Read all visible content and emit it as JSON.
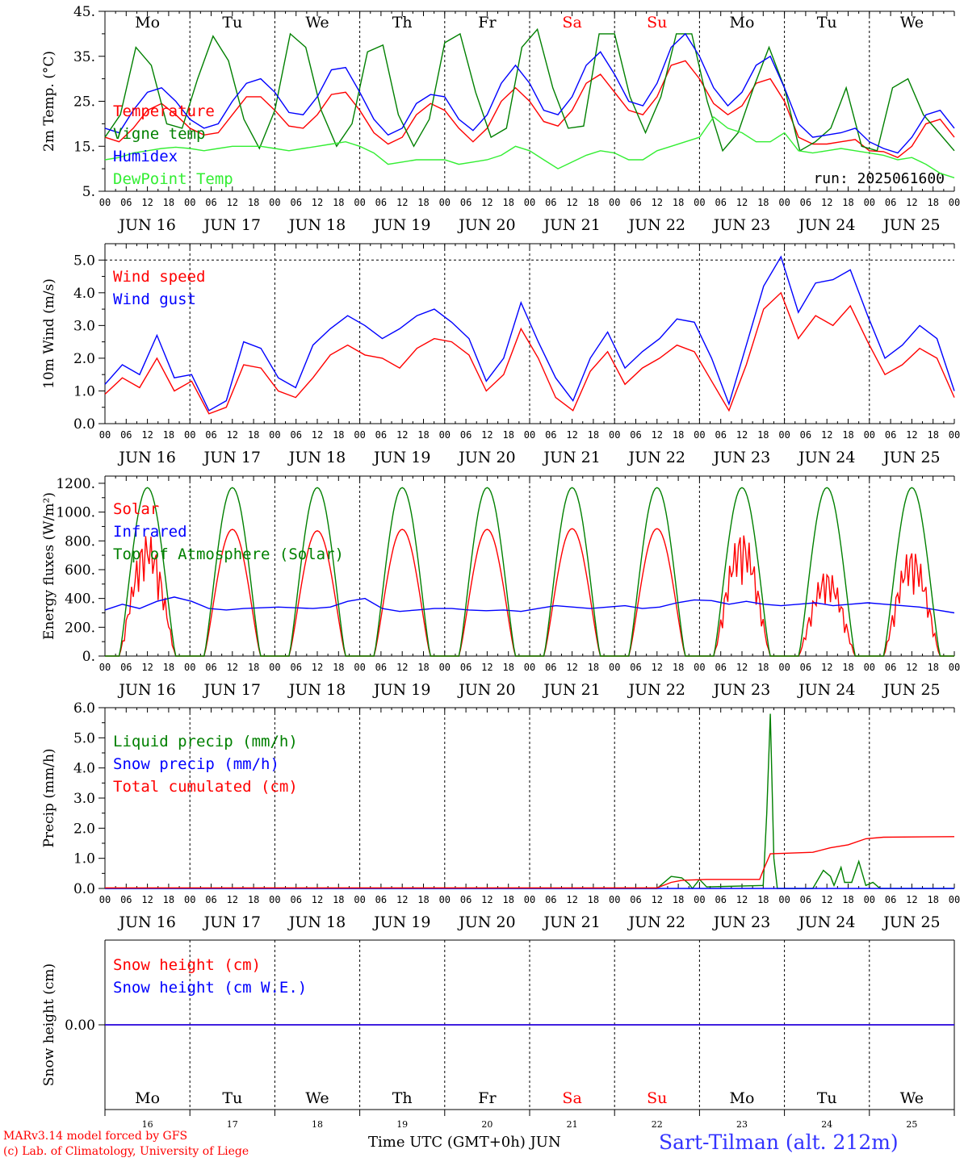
{
  "footer": {
    "model": "MARv3.14 model forced by GFS",
    "lab": "(c) Lab. of Climatology, University of Liege",
    "xlabel": "Time UTC (GMT+0h) JUN",
    "station": "Sart-Tilman (alt. 212m)"
  },
  "colors": {
    "red": "#ff0000",
    "green": "#008000",
    "blue": "#0000ff",
    "lightgreen": "#33ee33",
    "weekend": "#ff0000",
    "axis": "#000000"
  },
  "days": {
    "weekdays": [
      "Mo",
      "Tu",
      "We",
      "Th",
      "Fr",
      "Sa",
      "Su",
      "Mo",
      "Tu",
      "We"
    ],
    "weekend_index": [
      5,
      6
    ],
    "dates": [
      "JUN 16",
      "JUN 17",
      "JUN 18",
      "JUN 19",
      "JUN 20",
      "JUN 21",
      "JUN 22",
      "JUN 23",
      "JUN 24",
      "JUN 25"
    ],
    "day_numbers": [
      "16",
      "17",
      "18",
      "19",
      "20",
      "21",
      "22",
      "23",
      "24",
      "25"
    ],
    "hour_labels": [
      "00",
      "06",
      "12",
      "18"
    ],
    "final_hour_label": "00"
  },
  "chart_data": [
    {
      "type": "line",
      "ylabel": "2m Temp. (°C)",
      "ylim": [
        5,
        45
      ],
      "yticks": [
        "5.",
        "15.",
        "25.",
        "35.",
        "45."
      ],
      "annotation": "run: 2025061600",
      "show_weekdays": true,
      "series": [
        {
          "name": "Temperature",
          "color": "red",
          "legend_color": "red",
          "values": [
            17,
            16,
            19,
            23,
            24.5,
            22,
            19,
            17.5,
            18,
            22,
            26,
            26,
            23,
            19.5,
            19,
            22,
            26.5,
            27,
            23,
            18,
            15.5,
            17,
            22,
            24.5,
            23,
            19,
            16,
            19,
            25,
            28,
            25,
            20.5,
            19.5,
            23,
            29,
            31,
            27,
            23,
            22,
            26,
            33,
            34,
            30,
            24.5,
            22,
            24,
            29,
            30,
            25,
            17,
            15.5,
            15.5,
            16,
            16.5,
            14,
            13.8,
            12.5,
            15,
            20,
            21,
            17
          ]
        },
        {
          "name": "Vigne temp",
          "color": "green",
          "legend_color": "green",
          "values": [
            17,
            22,
            37,
            33,
            20,
            19,
            30,
            39.5,
            34,
            21,
            14.5,
            23,
            40,
            37,
            23,
            15,
            20,
            36,
            37.5,
            22,
            15,
            21,
            38,
            40,
            27,
            17,
            19,
            37,
            41,
            28,
            19,
            19.5,
            40,
            40,
            26,
            18,
            26,
            40,
            40,
            25,
            14,
            18,
            28,
            37,
            28,
            14,
            16,
            19,
            28,
            15,
            14,
            28,
            30,
            22,
            18,
            14
          ]
        },
        {
          "name": "Humidex",
          "color": "blue",
          "legend_color": "blue",
          "values": [
            19,
            18,
            23,
            27,
            28,
            25,
            21,
            19,
            20,
            25,
            29,
            30,
            27,
            22.5,
            22,
            26,
            32,
            32.5,
            27,
            21,
            17.5,
            19,
            24.5,
            26.5,
            26,
            21,
            18.5,
            22,
            29,
            33,
            29,
            23,
            22,
            26,
            33,
            36,
            31,
            25,
            24,
            29,
            37,
            40,
            35,
            28,
            24,
            27,
            33,
            35,
            28,
            20,
            17,
            17.5,
            18,
            19,
            16,
            14.5,
            13.5,
            17,
            22,
            23,
            19
          ]
        },
        {
          "name": "DewPoint Temp",
          "color": "lightgreen",
          "legend_color": "lightgreen",
          "values": [
            12,
            12.5,
            13.5,
            14,
            14.5,
            14.8,
            14.5,
            14,
            14.5,
            15,
            15,
            15,
            14.5,
            14,
            14.5,
            15,
            15.5,
            16,
            15,
            13.5,
            11,
            11.5,
            12,
            12,
            12,
            11,
            11.5,
            12,
            13,
            15,
            14,
            12,
            10,
            11.5,
            13,
            14,
            13.5,
            12,
            12,
            14,
            15,
            16,
            17,
            21.5,
            19,
            18,
            16,
            16,
            18,
            14,
            13.5,
            14,
            14.5,
            14,
            13.5,
            13,
            12,
            12.5,
            11,
            9,
            8
          ]
        }
      ]
    },
    {
      "type": "line",
      "ylabel": "10m Wind (m/s)",
      "ylim": [
        0,
        5.5
      ],
      "yticks": [
        "0.0",
        "1.0",
        "2.0",
        "3.0",
        "4.0",
        "5.0"
      ],
      "dashed_y": 5.0,
      "show_weekdays": false,
      "series": [
        {
          "name": "Wind speed",
          "color": "red",
          "legend_color": "red",
          "values": [
            0.9,
            1.4,
            1.1,
            2.0,
            1.0,
            1.3,
            0.3,
            0.5,
            1.8,
            1.7,
            1.0,
            0.8,
            1.4,
            2.1,
            2.4,
            2.1,
            2.0,
            1.7,
            2.3,
            2.6,
            2.5,
            2.1,
            1.0,
            1.5,
            2.9,
            2.0,
            0.8,
            0.4,
            1.6,
            2.2,
            1.2,
            1.7,
            2.0,
            2.4,
            2.2,
            1.3,
            0.4,
            1.8,
            3.5,
            4.0,
            2.6,
            3.3,
            3.0,
            3.6,
            2.5,
            1.5,
            1.8,
            2.3,
            2.0,
            0.8
          ]
        },
        {
          "name": "Wind gust",
          "color": "blue",
          "legend_color": "blue",
          "values": [
            1.2,
            1.8,
            1.5,
            2.7,
            1.4,
            1.5,
            0.4,
            0.7,
            2.5,
            2.3,
            1.4,
            1.1,
            2.4,
            2.9,
            3.3,
            3.0,
            2.6,
            2.9,
            3.3,
            3.5,
            3.1,
            2.6,
            1.3,
            2.0,
            3.7,
            2.5,
            1.4,
            0.7,
            2.0,
            2.8,
            1.7,
            2.2,
            2.6,
            3.2,
            3.1,
            2.0,
            0.6,
            2.4,
            4.2,
            5.1,
            3.4,
            4.3,
            4.4,
            4.7,
            3.3,
            2.0,
            2.4,
            3.0,
            2.6,
            1.0
          ]
        }
      ]
    },
    {
      "type": "line",
      "ylabel": "Energy fluxes (W/m²)",
      "ylim": [
        0,
        1250
      ],
      "yticks": [
        "0.",
        "200.",
        "400.",
        "600.",
        "800.",
        "1000.",
        "1200."
      ],
      "show_weekdays": false,
      "series": [
        {
          "name": "Solar",
          "color": "red",
          "legend_color": "red",
          "daily_peaks": [
            850,
            880,
            870,
            880,
            880,
            885,
            885,
            870,
            600,
            750
          ],
          "irregular_days": [
            0,
            7,
            8,
            9
          ]
        },
        {
          "name": "Infrared",
          "color": "blue",
          "legend_color": "blue",
          "values": [
            320,
            360,
            330,
            380,
            410,
            380,
            330,
            320,
            330,
            335,
            340,
            335,
            330,
            340,
            380,
            400,
            330,
            310,
            320,
            330,
            330,
            320,
            315,
            320,
            310,
            330,
            350,
            340,
            330,
            340,
            350,
            330,
            340,
            370,
            390,
            385,
            360,
            380,
            360,
            350,
            360,
            370,
            350,
            360,
            370,
            360,
            350,
            340,
            320,
            300
          ]
        },
        {
          "name": "Top of Atmosphere (Solar)",
          "color": "green",
          "legend_color": "green",
          "daily_peaks": [
            1170,
            1170,
            1170,
            1170,
            1170,
            1170,
            1170,
            1170,
            1170,
            1170
          ]
        }
      ]
    },
    {
      "type": "line",
      "ylabel": "Precip (mm/h)",
      "ylim": [
        0,
        6.0
      ],
      "yticks": [
        "0.0",
        "1.0",
        "2.0",
        "3.0",
        "4.0",
        "5.0",
        "6.0"
      ],
      "show_weekdays": false,
      "series": [
        {
          "name": "Liquid precip (mm/h)",
          "color": "green",
          "legend_color": "green",
          "points": [
            [
              0,
              0
            ],
            [
              156,
              0
            ],
            [
              160,
              0.4
            ],
            [
              163,
              0.35
            ],
            [
              165,
              0.15
            ],
            [
              166,
              0
            ],
            [
              168,
              0.3
            ],
            [
              170,
              0.05
            ],
            [
              186,
              0.1
            ],
            [
              187,
              2.5
            ],
            [
              188,
              5.8
            ],
            [
              189,
              1.0
            ],
            [
              190,
              0
            ],
            [
              200,
              0
            ],
            [
              203,
              0.6
            ],
            [
              205,
              0.4
            ],
            [
              206,
              0.1
            ],
            [
              208,
              0.7
            ],
            [
              209,
              0.2
            ],
            [
              211,
              0.2
            ],
            [
              213,
              0.9
            ],
            [
              215,
              0.1
            ],
            [
              217,
              0.2
            ],
            [
              219,
              0
            ],
            [
              240,
              0
            ]
          ]
        },
        {
          "name": "Snow precip (mm/h)",
          "color": "blue",
          "legend_color": "blue",
          "points": [
            [
              0,
              0
            ],
            [
              240,
              0
            ]
          ]
        },
        {
          "name": "Total cumulated (cm)",
          "color": "red",
          "legend_color": "red",
          "points": [
            [
              0,
              0.02
            ],
            [
              156,
              0.02
            ],
            [
              160,
              0.2
            ],
            [
              163,
              0.27
            ],
            [
              170,
              0.3
            ],
            [
              185,
              0.3
            ],
            [
              186,
              0.6
            ],
            [
              188,
              1.15
            ],
            [
              200,
              1.2
            ],
            [
              205,
              1.35
            ],
            [
              210,
              1.45
            ],
            [
              215,
              1.65
            ],
            [
              220,
              1.7
            ],
            [
              240,
              1.72
            ]
          ]
        }
      ]
    },
    {
      "type": "line",
      "ylabel": "Snow height (cm)",
      "ylim": [
        -1,
        1
      ],
      "yticks": [
        "0.00"
      ],
      "show_weekdays": "bottom",
      "series": [
        {
          "name": "Snow height (cm)",
          "color": "red",
          "legend_color": "red",
          "points": [
            [
              0,
              0
            ],
            [
              240,
              0
            ]
          ]
        },
        {
          "name": "Snow height (cm W.E.)",
          "color": "blue",
          "legend_color": "blue",
          "points": [
            [
              0,
              0
            ],
            [
              240,
              0
            ]
          ]
        }
      ]
    }
  ]
}
